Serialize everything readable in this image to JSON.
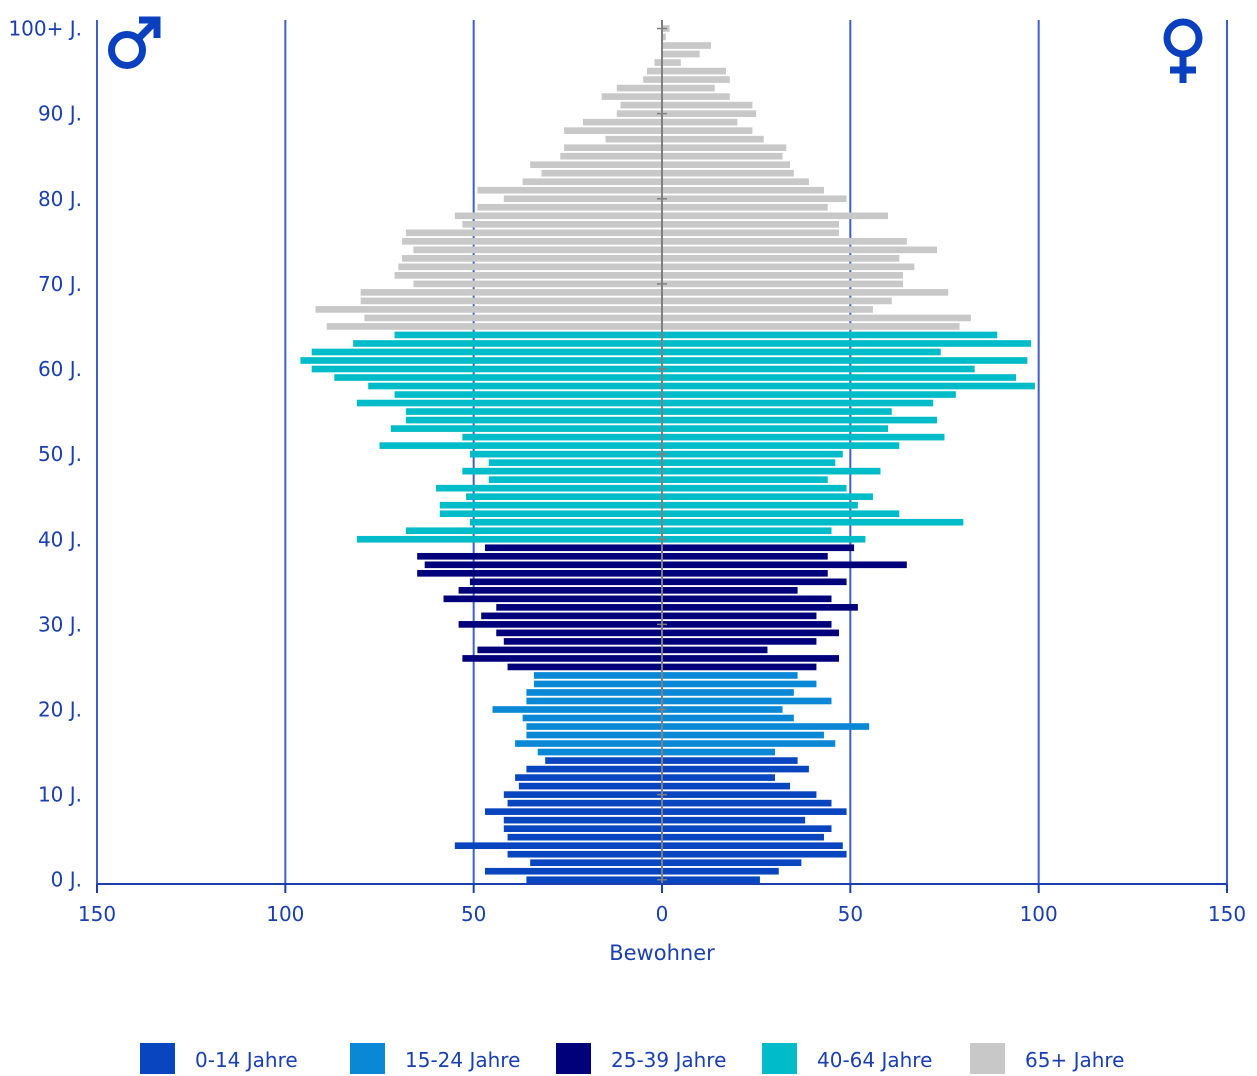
{
  "chart_data": {
    "type": "bar",
    "orientation": "horizontal",
    "subtype": "population-pyramid",
    "xlabel": "Bewohner",
    "xlim": [
      -150,
      150
    ],
    "x_ticks": [
      {
        "value": -150,
        "label": "150"
      },
      {
        "value": -100,
        "label": "100"
      },
      {
        "value": -50,
        "label": "50"
      },
      {
        "value": 0,
        "label": "0"
      },
      {
        "value": 50,
        "label": "50"
      },
      {
        "value": 100,
        "label": "100"
      },
      {
        "value": 150,
        "label": "150"
      }
    ],
    "y_ticks": [
      {
        "age": 0,
        "label": "0 J."
      },
      {
        "age": 10,
        "label": "10 J."
      },
      {
        "age": 20,
        "label": "20 J."
      },
      {
        "age": 30,
        "label": "30 J."
      },
      {
        "age": 40,
        "label": "40 J."
      },
      {
        "age": 50,
        "label": "50 J."
      },
      {
        "age": 60,
        "label": "60 J."
      },
      {
        "age": 70,
        "label": "70 J."
      },
      {
        "age": 80,
        "label": "80 J."
      },
      {
        "age": 90,
        "label": "90 J."
      },
      {
        "age": 100,
        "label": "100+ J."
      }
    ],
    "grid": "vertical",
    "gender_symbols": {
      "left": "♂",
      "right": "♀"
    },
    "age_groups": [
      {
        "name": "0-14 Jahre",
        "from": 0,
        "to": 14,
        "color": "#0a45c0"
      },
      {
        "name": "15-24 Jahre",
        "from": 15,
        "to": 24,
        "color": "#0a88d6"
      },
      {
        "name": "25-39 Jahre",
        "from": 25,
        "to": 39,
        "color": "#00007a"
      },
      {
        "name": "40-64 Jahre",
        "from": 40,
        "to": 64,
        "color": "#00bcc8"
      },
      {
        "name": "65+ Jahre",
        "from": 65,
        "to": 100,
        "color": "#c8c8c8"
      }
    ],
    "ages": [
      0,
      1,
      2,
      3,
      4,
      5,
      6,
      7,
      8,
      9,
      10,
      11,
      12,
      13,
      14,
      15,
      16,
      17,
      18,
      19,
      20,
      21,
      22,
      23,
      24,
      25,
      26,
      27,
      28,
      29,
      30,
      31,
      32,
      33,
      34,
      35,
      36,
      37,
      38,
      39,
      40,
      41,
      42,
      43,
      44,
      45,
      46,
      47,
      48,
      49,
      50,
      51,
      52,
      53,
      54,
      55,
      56,
      57,
      58,
      59,
      60,
      61,
      62,
      63,
      64,
      65,
      66,
      67,
      68,
      69,
      70,
      71,
      72,
      73,
      74,
      75,
      76,
      77,
      78,
      79,
      80,
      81,
      82,
      83,
      84,
      85,
      86,
      87,
      88,
      89,
      90,
      91,
      92,
      93,
      94,
      95,
      96,
      97,
      98,
      99,
      100
    ],
    "series": [
      {
        "name": "Männer",
        "side": "left",
        "values": [
          36,
          47,
          35,
          41,
          55,
          41,
          42,
          42,
          47,
          41,
          42,
          38,
          39,
          36,
          31,
          33,
          39,
          36,
          36,
          37,
          45,
          36,
          36,
          34,
          34,
          41,
          53,
          49,
          42,
          44,
          54,
          48,
          44,
          58,
          54,
          51,
          65,
          63,
          65,
          47,
          81,
          68,
          51,
          59,
          59,
          52,
          60,
          46,
          53,
          46,
          51,
          75,
          53,
          72,
          68,
          68,
          81,
          71,
          78,
          87,
          93,
          96,
          93,
          82,
          71,
          89,
          79,
          92,
          80,
          80,
          66,
          71,
          70,
          69,
          66,
          69,
          68,
          53,
          55,
          49,
          42,
          49,
          37,
          32,
          35,
          27,
          26,
          15,
          26,
          21,
          12,
          11,
          16,
          12,
          5,
          4,
          2,
          0,
          0,
          0,
          0
        ]
      },
      {
        "name": "Frauen",
        "side": "right",
        "values": [
          26,
          31,
          37,
          49,
          48,
          43,
          45,
          38,
          49,
          45,
          41,
          34,
          30,
          39,
          36,
          30,
          46,
          43,
          55,
          35,
          32,
          45,
          35,
          41,
          36,
          41,
          47,
          28,
          41,
          47,
          45,
          41,
          52,
          45,
          36,
          49,
          44,
          65,
          44,
          51,
          54,
          45,
          80,
          63,
          52,
          56,
          49,
          44,
          58,
          46,
          48,
          63,
          75,
          60,
          73,
          61,
          72,
          78,
          99,
          94,
          83,
          97,
          74,
          98,
          89,
          79,
          82,
          56,
          61,
          76,
          64,
          64,
          67,
          63,
          73,
          65,
          47,
          47,
          60,
          44,
          49,
          43,
          39,
          35,
          34,
          32,
          33,
          27,
          24,
          20,
          25,
          24,
          18,
          14,
          18,
          17,
          5,
          10,
          13,
          1,
          2
        ]
      }
    ]
  }
}
